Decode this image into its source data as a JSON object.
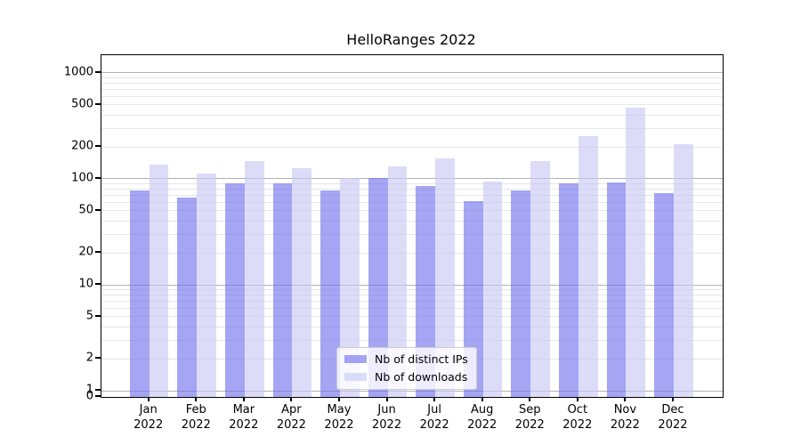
{
  "chart_data": {
    "type": "bar",
    "title": "HelloRanges 2022",
    "categories": [
      "Jan 2022",
      "Feb 2022",
      "Mar 2022",
      "Apr 2022",
      "May 2022",
      "Jun 2022",
      "Jul 2022",
      "Aug 2022",
      "Sep 2022",
      "Oct 2022",
      "Nov 2022",
      "Dec 2022"
    ],
    "series": [
      {
        "name": "Nb of distinct IPs",
        "color": "rgba(113,113,238,0.63)",
        "values": [
          78,
          67,
          90,
          90,
          78,
          102,
          86,
          61,
          77,
          90,
          93,
          73
        ]
      },
      {
        "name": "Nb of downloads",
        "color": "rgba(200,200,246,0.63)",
        "values": [
          137,
          113,
          148,
          127,
          101,
          130,
          155,
          95,
          147,
          254,
          468,
          213
        ]
      }
    ],
    "yscale": "symlog",
    "ylim": [
      0,
      1460
    ],
    "y_ticks": [
      0,
      1,
      2,
      5,
      10,
      20,
      50,
      100,
      200,
      500,
      1000
    ],
    "y_major_gridlines": [
      1,
      10,
      100,
      1000
    ],
    "grid": {
      "on": true,
      "major_color": "#b2b2b2",
      "minor_color": "#e6e6e6"
    },
    "legend": {
      "position": "lower center",
      "entries": [
        "Nb of distinct IPs",
        "Nb of downloads"
      ]
    },
    "colors": {
      "axis": "#000000",
      "text": "#000000",
      "background": "#ffffff"
    },
    "xlabel": "",
    "ylabel": ""
  }
}
